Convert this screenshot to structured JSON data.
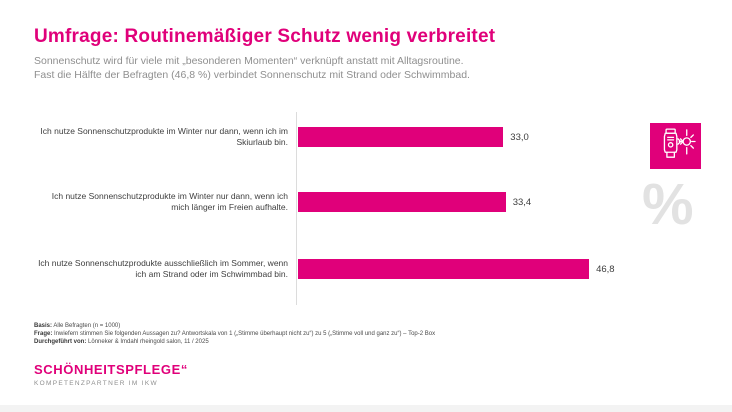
{
  "page": {
    "background": "#ffffff",
    "accent_color": "#E0007A"
  },
  "header": {
    "title": "Umfrage: Routinemäßiger Schutz wenig verbreitet",
    "subtitle_line1": "Sonnenschutz wird für viele mit „besonderen Momenten“ verknüpft anstatt mit Alltagsroutine.",
    "subtitle_line2": "Fast die Hälfte der Befragten (46,8 %) verbindet Sonnenschutz mit Strand oder Schwimmbad."
  },
  "chart_data": {
    "type": "bar",
    "orientation": "horizontal",
    "unit": "percent",
    "bar_color": "#E0007A",
    "xlim": [
      0,
      50
    ],
    "grid": false,
    "legend": false,
    "categories": [
      "Ich nutze Sonnenschutzprodukte im Winter nur dann, wenn ich im Skiurlaub bin.",
      "Ich nutze Sonnenschutzprodukte im Winter nur dann, wenn ich mich länger im Freien aufhalte.",
      "Ich nutze Sonnenschutzprodukte ausschließlich im Sommer, wenn ich am Strand oder im Schwimmbad bin."
    ],
    "values": [
      33.0,
      33.4,
      46.8
    ],
    "rows": [
      {
        "label": "Ich nutze Sonnenschutzprodukte im Winter nur dann, wenn ich im Skiurlaub bin.",
        "value": 33.0,
        "value_label": "33,0"
      },
      {
        "label": "Ich nutze Sonnenschutzprodukte im Winter nur dann, wenn ich mich länger im Freien aufhalte.",
        "value": 33.4,
        "value_label": "33,4"
      },
      {
        "label": "Ich nutze Sonnenschutzprodukte ausschließlich im Sommer, wenn ich am Strand oder im Schwimmbad bin.",
        "value": 46.8,
        "value_label": "46,8"
      }
    ]
  },
  "side": {
    "tile_icon": "sunscreen-winter-icon",
    "percent_symbol": "%"
  },
  "footnotes": [
    {
      "label": "Basis:",
      "text": "Alle Befragten (n = 1000)"
    },
    {
      "label": "Frage:",
      "text": "Inwiefern stimmen Sie folgenden Aussagen zu? Antwortskala von 1 („Stimme überhaupt nicht zu“) zu 5  („Stimme voll und ganz zu“) – Top-2 Box"
    },
    {
      "label": "Durchgeführt von:",
      "text": "Lönneker & Imdahl rheingold salon, 11 / 2025"
    }
  ],
  "logo": {
    "name": "SCHÖNHEITSPFLEGE“",
    "tagline": "KOMPETENZPARTNER IM IKW"
  }
}
